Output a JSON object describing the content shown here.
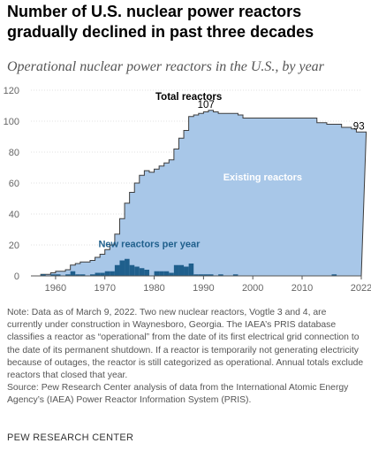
{
  "title": "Number of U.S. nuclear power reactors gradually declined in past three decades",
  "subtitle": "Operational nuclear power reactors in the U.S., by year",
  "chart_data": {
    "type": "area",
    "title": "Number of U.S. nuclear power reactors gradually declined in past three decades",
    "subtitle": "Operational nuclear power reactors in the U.S., by year",
    "xlim": [
      1955,
      2022
    ],
    "ylim": [
      0,
      120
    ],
    "x_ticks": [
      "1960",
      "1970",
      "1980",
      "1990",
      "2000",
      "2010",
      "2022"
    ],
    "y_ticks": [
      "0",
      "20",
      "40",
      "60",
      "80",
      "100",
      "120"
    ],
    "grid": true,
    "series": [
      {
        "name": "Total reactors",
        "type": "area",
        "x": [
          1957,
          1958,
          1959,
          1960,
          1961,
          1962,
          1963,
          1964,
          1965,
          1966,
          1967,
          1968,
          1969,
          1970,
          1971,
          1972,
          1973,
          1974,
          1975,
          1976,
          1977,
          1978,
          1979,
          1980,
          1981,
          1982,
          1983,
          1984,
          1985,
          1986,
          1987,
          1988,
          1989,
          1990,
          1991,
          1992,
          1993,
          1994,
          1995,
          1996,
          1997,
          1998,
          1999,
          2000,
          2001,
          2002,
          2003,
          2004,
          2005,
          2006,
          2007,
          2008,
          2009,
          2010,
          2011,
          2012,
          2013,
          2014,
          2015,
          2016,
          2017,
          2018,
          2019,
          2020,
          2021,
          2022
        ],
        "values": [
          1,
          1,
          2,
          3,
          3,
          4,
          7,
          8,
          9,
          9,
          10,
          12,
          14,
          17,
          20,
          27,
          37,
          47,
          54,
          60,
          65,
          68,
          67,
          69,
          71,
          73,
          75,
          82,
          89,
          94,
          103,
          104,
          105,
          106,
          107,
          106,
          105,
          105,
          105,
          105,
          104,
          102,
          102,
          102,
          102,
          102,
          102,
          102,
          102,
          102,
          102,
          102,
          102,
          102,
          102,
          102,
          99,
          99,
          98,
          98,
          98,
          96,
          96,
          95,
          93,
          93
        ],
        "color": "#a8c7e8"
      },
      {
        "name": "New reactors per year",
        "type": "bar",
        "x": [
          1957,
          1958,
          1959,
          1960,
          1961,
          1962,
          1963,
          1964,
          1965,
          1966,
          1967,
          1968,
          1969,
          1970,
          1971,
          1972,
          1973,
          1974,
          1975,
          1976,
          1977,
          1978,
          1979,
          1980,
          1981,
          1982,
          1983,
          1984,
          1985,
          1986,
          1987,
          1988,
          1989,
          1990,
          1991,
          1992,
          1993,
          1994,
          1995,
          1996,
          1997,
          1998,
          1999,
          2000,
          2001,
          2002,
          2003,
          2004,
          2005,
          2006,
          2007,
          2008,
          2009,
          2010,
          2011,
          2012,
          2013,
          2014,
          2015,
          2016,
          2017,
          2018,
          2019,
          2020,
          2021,
          2022
        ],
        "values": [
          1,
          0,
          1,
          1,
          0,
          1,
          3,
          1,
          1,
          0,
          1,
          2,
          2,
          3,
          3,
          7,
          10,
          11,
          7,
          6,
          5,
          4,
          0,
          3,
          3,
          3,
          2,
          7,
          7,
          6,
          8,
          1,
          1,
          1,
          1,
          0,
          1,
          0,
          0,
          1,
          0,
          0,
          0,
          0,
          0,
          0,
          0,
          0,
          0,
          0,
          0,
          0,
          0,
          0,
          0,
          0,
          0,
          0,
          0,
          1,
          0,
          0,
          0,
          0,
          0,
          0
        ],
        "color": "#1f5f8c"
      }
    ],
    "annotations": [
      {
        "text": "Total reactors",
        "x": 1987,
        "y": 112
      },
      {
        "text": "107",
        "x": 1990.5,
        "y": 107
      },
      {
        "text": "93",
        "x": 2021.5,
        "y": 93
      },
      {
        "text": "Existing reactors",
        "x": 2002,
        "y": 60
      },
      {
        "text": "New reactors per year",
        "x": 1979,
        "y": 17
      }
    ]
  },
  "notes": [
    "Note: Data as of March 9, 2022. Two new nuclear reactors, Vogtle 3 and 4, are currently under construction in Waynesboro, Georgia. The IAEA’s PRIS database classifies a reactor as “operational” from the date of its first electrical grid connection to the date of its permanent shutdown. If a reactor is temporarily not generating electricity because of outages, the reactor is still categorized as operational. Annual totals exclude reactors that closed that year.",
    "Source: Pew Research Center analysis of data from the International Atomic Energy Agency’s (IAEA) Power Reactor Information System (PRIS)."
  ],
  "brand": "PEW RESEARCH CENTER"
}
